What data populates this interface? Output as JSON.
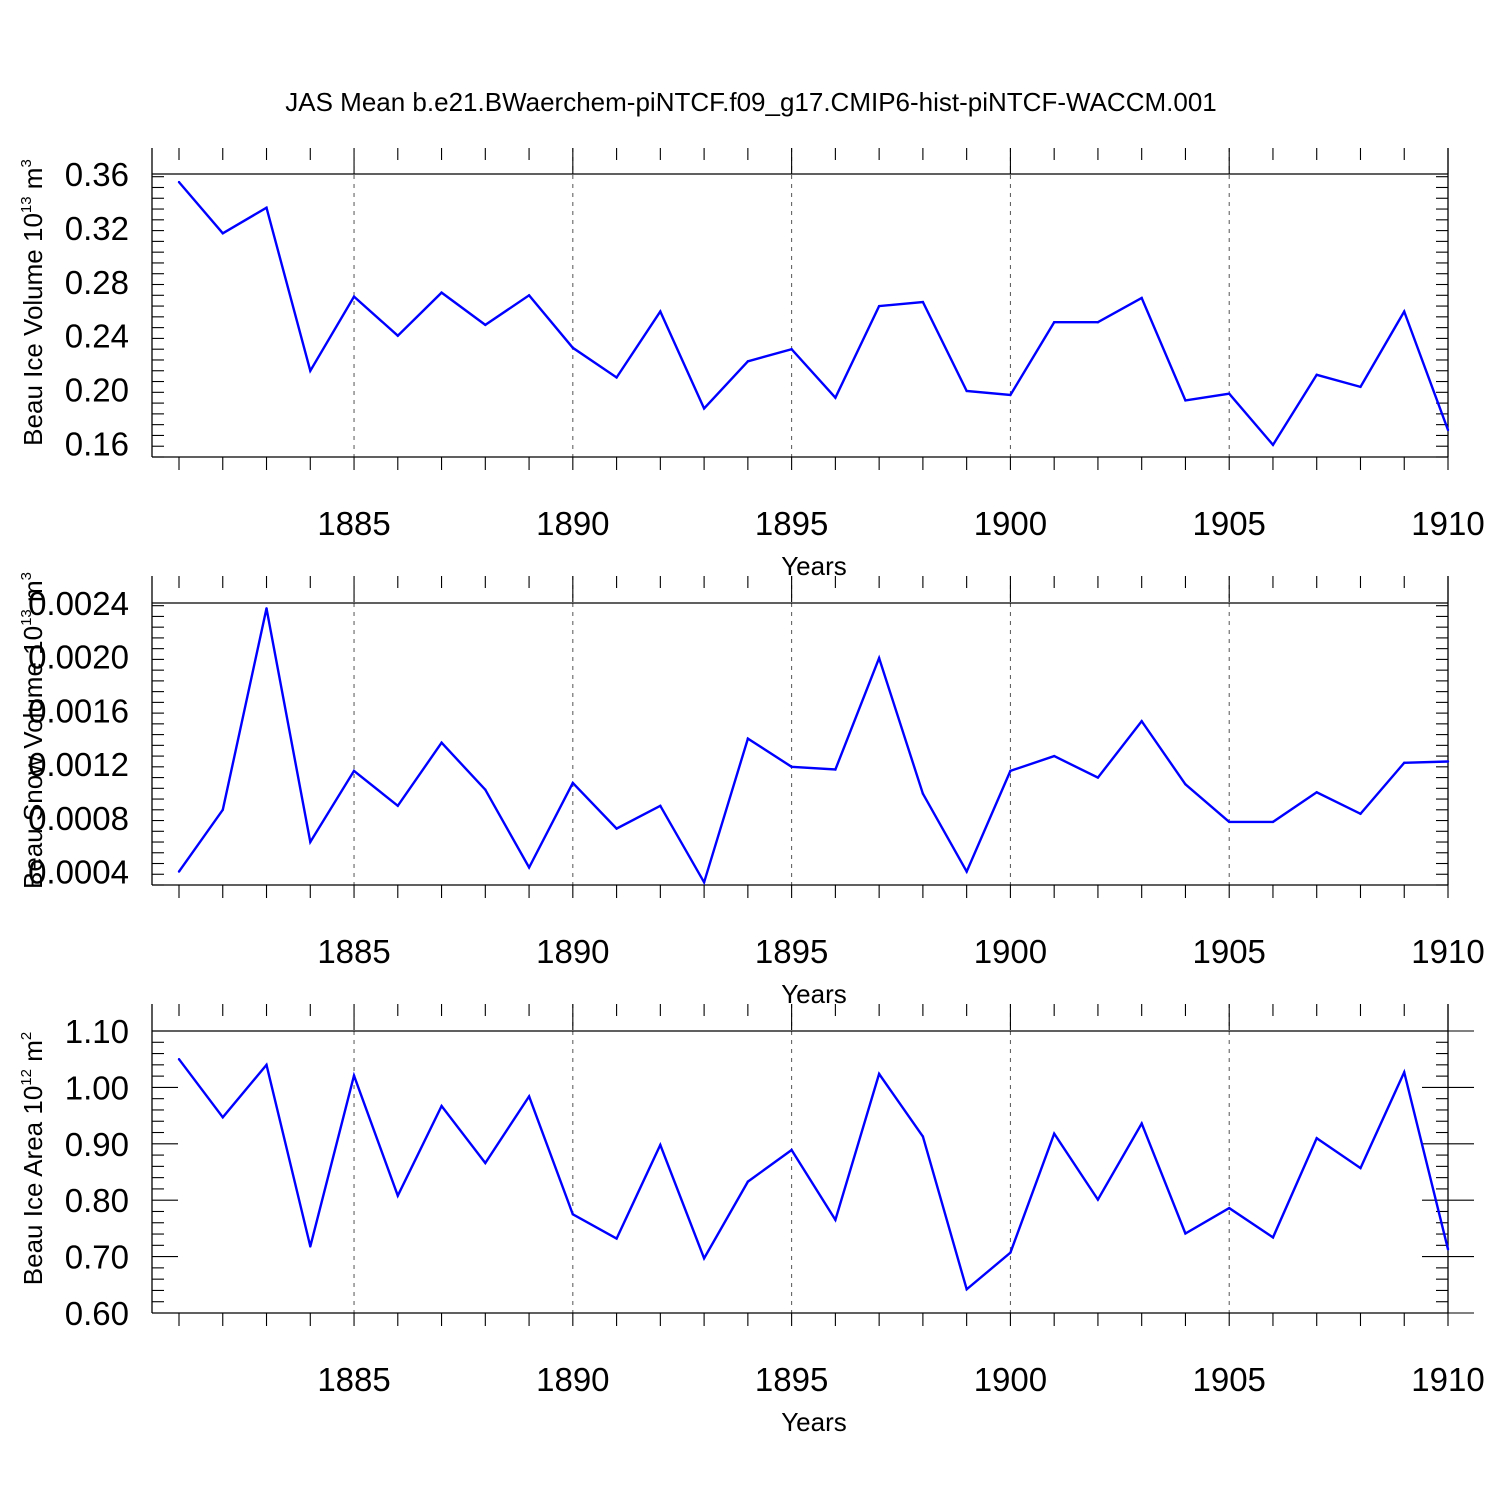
{
  "title": "JAS Mean b.e21.BWaerchem-piNTCF.f09_g17.CMIP6-hist-piNTCF-WACCM.001",
  "colors": {
    "line": "#0000ff",
    "axes": "#000000",
    "grid": "#555555",
    "background": "#ffffff"
  },
  "chart_data": [
    {
      "type": "line",
      "title": "",
      "xlabel": "Years",
      "ylabel": "Beau Ice Volume 10",
      "ylabel_exponent": "13",
      "ylabel_unit": " m",
      "ylabel_unit_exponent": "3",
      "xlim": [
        1881,
        1910
      ],
      "ylim": [
        0.15,
        0.36
      ],
      "yticks": [
        0.16,
        0.2,
        0.24,
        0.28,
        0.32,
        0.36
      ],
      "ytick_labels": [
        "0.16",
        "0.20",
        "0.24",
        "0.28",
        "0.32",
        "0.36"
      ],
      "xticks": [
        1885,
        1890,
        1895,
        1900,
        1905,
        1910
      ],
      "xtick_labels": [
        "1885",
        "1890",
        "1895",
        "1900",
        "1905",
        "1910"
      ],
      "x": [
        1881,
        1882,
        1883,
        1884,
        1885,
        1886,
        1887,
        1888,
        1889,
        1890,
        1891,
        1892,
        1893,
        1894,
        1895,
        1896,
        1897,
        1898,
        1899,
        1900,
        1901,
        1902,
        1903,
        1904,
        1905,
        1906,
        1907,
        1908,
        1909,
        1910
      ],
      "values": [
        0.354,
        0.316,
        0.335,
        0.214,
        0.269,
        0.24,
        0.272,
        0.248,
        0.27,
        0.231,
        0.209,
        0.258,
        0.186,
        0.221,
        0.23,
        0.194,
        0.262,
        0.265,
        0.199,
        0.196,
        0.25,
        0.25,
        0.268,
        0.192,
        0.197,
        0.159,
        0.211,
        0.202,
        0.258,
        0.17
      ]
    },
    {
      "type": "line",
      "title": "",
      "xlabel": "Years",
      "ylabel": "Beau Snow Volume 10",
      "ylabel_exponent": "13",
      "ylabel_unit": " m",
      "ylabel_unit_exponent": "3",
      "xlim": [
        1881,
        1910
      ],
      "ylim": [
        0.0003,
        0.0024
      ],
      "yticks": [
        0.0004,
        0.0008,
        0.0012,
        0.0016,
        0.002,
        0.0024
      ],
      "ytick_labels": [
        "0.0004",
        "0.0008",
        "0.0012",
        "0.0016",
        "0.0020",
        "0.0024"
      ],
      "xticks": [
        1885,
        1890,
        1895,
        1900,
        1905,
        1910
      ],
      "xtick_labels": [
        "1885",
        "1890",
        "1895",
        "1900",
        "1905",
        "1910"
      ],
      "x": [
        1881,
        1882,
        1883,
        1884,
        1885,
        1886,
        1887,
        1888,
        1889,
        1890,
        1891,
        1892,
        1893,
        1894,
        1895,
        1896,
        1897,
        1898,
        1899,
        1900,
        1901,
        1902,
        1903,
        1904,
        1905,
        1906,
        1907,
        1908,
        1909,
        1910
      ],
      "values": [
        0.0004,
        0.00086,
        0.00236,
        0.00062,
        0.00115,
        0.00089,
        0.00136,
        0.00101,
        0.00043,
        0.00106,
        0.00072,
        0.00089,
        0.00032,
        0.00139,
        0.00118,
        0.00116,
        0.00199,
        0.00098,
        0.0004,
        0.00115,
        0.00126,
        0.0011,
        0.00152,
        0.00105,
        0.00077,
        0.00077,
        0.00099,
        0.00083,
        0.00121,
        0.00122
      ]
    },
    {
      "type": "line",
      "title": "",
      "xlabel": "Years",
      "ylabel": "Beau Ice Area 10",
      "ylabel_exponent": "12",
      "ylabel_unit": " m",
      "ylabel_unit_exponent": "2",
      "xlim": [
        1881,
        1910
      ],
      "ylim": [
        0.6,
        1.1
      ],
      "yticks": [
        0.6,
        0.7,
        0.8,
        0.9,
        1.0,
        1.1
      ],
      "ytick_labels": [
        "0.60",
        "0.70",
        "0.80",
        "0.90",
        "1.00",
        "1.10"
      ],
      "xticks": [
        1885,
        1890,
        1895,
        1900,
        1905,
        1910
      ],
      "xtick_labels": [
        "1885",
        "1890",
        "1895",
        "1900",
        "1905",
        "1910"
      ],
      "x": [
        1881,
        1882,
        1883,
        1884,
        1885,
        1886,
        1887,
        1888,
        1889,
        1890,
        1891,
        1892,
        1893,
        1894,
        1895,
        1896,
        1897,
        1898,
        1899,
        1900,
        1901,
        1902,
        1903,
        1904,
        1905,
        1906,
        1907,
        1908,
        1909,
        1910
      ],
      "values": [
        1.05,
        0.947,
        1.04,
        0.718,
        1.021,
        0.808,
        0.967,
        0.866,
        0.984,
        0.775,
        0.732,
        0.898,
        0.697,
        0.833,
        0.889,
        0.765,
        1.024,
        0.913,
        0.642,
        0.707,
        0.918,
        0.801,
        0.936,
        0.741,
        0.786,
        0.734,
        0.91,
        0.857,
        1.027,
        0.713
      ]
    }
  ]
}
